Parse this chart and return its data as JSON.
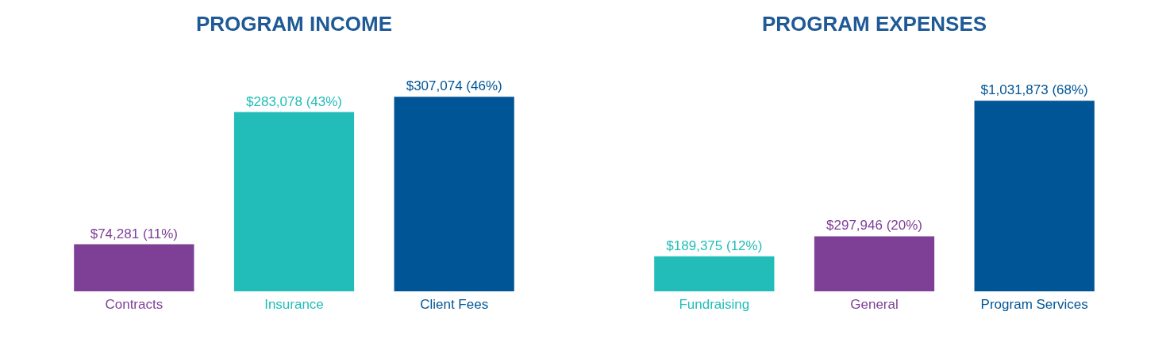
{
  "chart_data": [
    {
      "type": "bar",
      "title": "PROGRAM INCOME",
      "categories": [
        "Contracts",
        "Insurance",
        "Client Fees"
      ],
      "values": [
        74281,
        283078,
        307074
      ],
      "colors": [
        "#7e3f97",
        "#22bdb8",
        "#005596"
      ],
      "value_labels": [
        "$74,281 (11%)",
        "$283,078 (43%)",
        "$307,074 (46%)"
      ]
    },
    {
      "type": "bar",
      "title": "PROGRAM EXPENSES",
      "categories": [
        "Fundraising",
        "General",
        "Program Services"
      ],
      "values": [
        189375,
        297946,
        1031873
      ],
      "colors": [
        "#22bdb8",
        "#7e3f97",
        "#005596"
      ],
      "value_labels": [
        "$189,375 (12%)",
        "$297,946 (20%)",
        "$1,031,873 (68%)"
      ]
    }
  ]
}
